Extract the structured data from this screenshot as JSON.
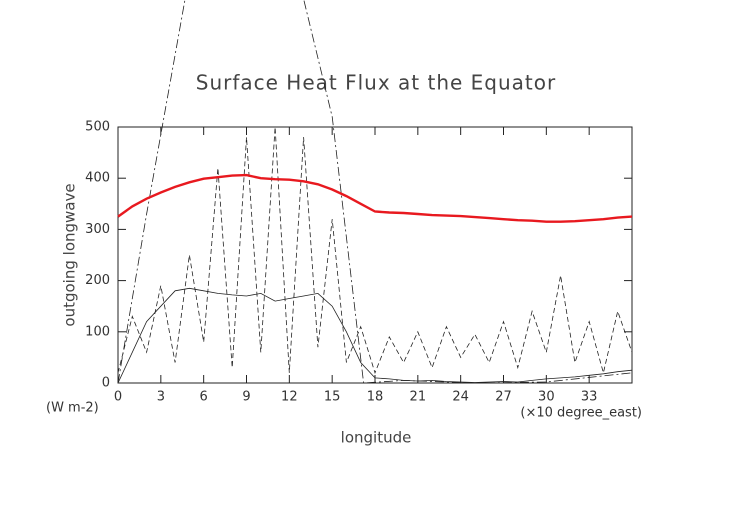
{
  "chart_data": {
    "type": "line",
    "title": "Surface Heat Flux at the Equator",
    "x_label": "longitude",
    "y_label": "outgoing longwave",
    "y_unit": "(W m-2)",
    "x_unit": "(×10 degree_east)",
    "xlim": [
      0,
      36
    ],
    "ylim": [
      0,
      500
    ],
    "xticks": [
      0,
      3,
      6,
      9,
      12,
      15,
      18,
      21,
      24,
      27,
      30,
      33
    ],
    "yticks": [
      0,
      100,
      200,
      300,
      400,
      500
    ],
    "series": [
      {
        "color": "#e8191f",
        "style": "solid",
        "width": 2.4,
        "x": [
          0,
          1,
          2,
          3,
          4,
          5,
          6,
          7,
          8,
          9,
          10,
          11,
          12,
          13,
          14,
          15,
          16,
          17,
          18,
          19,
          20,
          21,
          22,
          23,
          24,
          25,
          26,
          27,
          28,
          29,
          30,
          31,
          32,
          33,
          34,
          35,
          36
        ],
        "values": [
          325,
          345,
          360,
          372,
          383,
          392,
          399,
          402,
          405,
          406,
          400,
          398,
          397,
          394,
          388,
          378,
          365,
          350,
          335,
          333,
          332,
          330,
          328,
          327,
          326,
          324,
          322,
          320,
          318,
          317,
          315,
          315,
          316,
          318,
          320,
          323,
          325
        ]
      },
      {
        "color": "#222222",
        "style": "solid",
        "width": 0.8,
        "x": [
          0,
          1,
          2,
          3,
          4,
          5,
          6,
          7,
          8,
          9,
          10,
          11,
          12,
          13,
          14,
          15,
          16,
          17,
          18,
          19,
          20,
          21,
          22,
          23,
          24,
          25,
          26,
          27,
          28,
          29,
          30,
          31,
          32,
          33,
          34,
          35,
          36
        ],
        "values": [
          0,
          60,
          120,
          150,
          180,
          185,
          180,
          175,
          172,
          170,
          175,
          160,
          165,
          170,
          175,
          150,
          100,
          40,
          10,
          8,
          5,
          4,
          5,
          3,
          2,
          1,
          2,
          3,
          2,
          5,
          8,
          10,
          12,
          15,
          18,
          22,
          25
        ]
      },
      {
        "color": "#222222",
        "style": "dashed",
        "width": 0.8,
        "x": [
          0,
          1,
          2,
          3,
          4,
          5,
          6,
          7,
          8,
          9,
          10,
          11,
          12,
          13,
          14,
          15,
          16,
          17,
          18,
          19,
          20,
          21,
          22,
          23,
          24,
          25,
          26,
          27,
          28,
          29,
          30,
          31,
          32,
          33,
          34,
          35,
          36
        ],
        "values": [
          20,
          130,
          60,
          190,
          40,
          250,
          80,
          420,
          30,
          480,
          60,
          500,
          20,
          480,
          70,
          320,
          40,
          110,
          20,
          90,
          40,
          100,
          30,
          110,
          50,
          95,
          40,
          120,
          30,
          140,
          60,
          210,
          40,
          120,
          20,
          140,
          60
        ]
      },
      {
        "color": "#222222",
        "style": "dashdot",
        "width": 0.8,
        "x": [
          0,
          2,
          4.7,
          13,
          15,
          17.2,
          20,
          25,
          30,
          36
        ],
        "values": [
          0,
          330,
          750,
          750,
          520,
          0,
          5,
          0,
          2,
          20
        ]
      }
    ]
  }
}
